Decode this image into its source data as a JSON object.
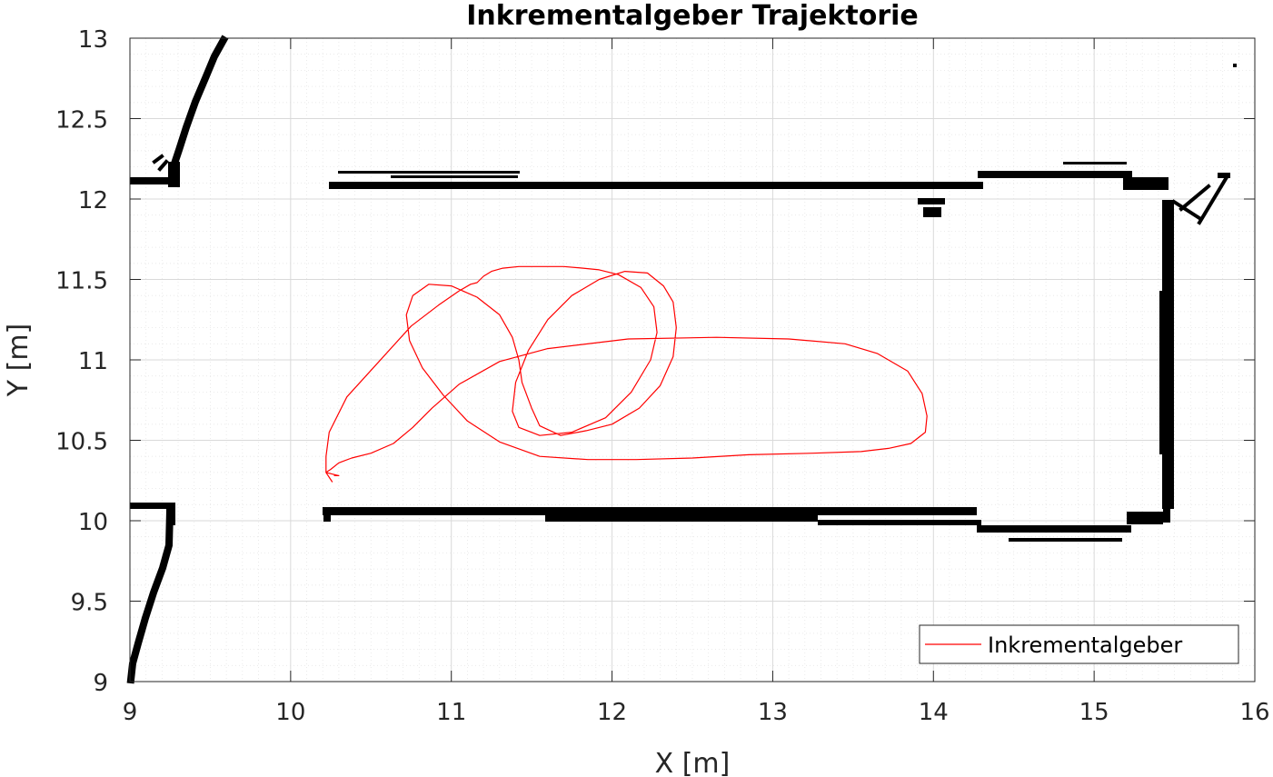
{
  "chart_data": {
    "type": "line",
    "title": "Inkrementalgeber Trajektorie",
    "xlabel": "X [m]",
    "ylabel": "Y [m]",
    "xlim": [
      9,
      16
    ],
    "ylim": [
      9,
      13
    ],
    "x_ticks": [
      "9",
      "10",
      "11",
      "12",
      "13",
      "14",
      "15",
      "16"
    ],
    "y_ticks": [
      "9",
      "9.5",
      "10",
      "10.5",
      "11",
      "11.5",
      "12",
      "12.5",
      "13"
    ],
    "grid": true,
    "minor_grid": true,
    "legend_position": "bottom-right",
    "series": [
      {
        "name": "Inkrementalgeber",
        "color": "#ff0000",
        "x": [
          10.26,
          10.22,
          10.22,
          10.24,
          10.35,
          10.55,
          10.75,
          10.92,
          11.05,
          11.12,
          11.16,
          11.2,
          11.25,
          11.32,
          11.42,
          11.55,
          11.7,
          11.82,
          11.92,
          12.04,
          12.18,
          12.26,
          12.28,
          12.24,
          12.12,
          11.96,
          11.75,
          11.55,
          11.42,
          11.38,
          11.4,
          11.48,
          11.6,
          11.75,
          11.92,
          12.08,
          12.22,
          12.32,
          12.38,
          12.4,
          12.38,
          12.3,
          12.17,
          12.0,
          11.84,
          11.68,
          11.55,
          11.5,
          11.44,
          11.42,
          11.38,
          11.3,
          11.16,
          11.0,
          10.86,
          10.76,
          10.72,
          10.74,
          10.82,
          10.95,
          11.1,
          11.3,
          11.55,
          11.85,
          12.15,
          12.5,
          12.85,
          13.25,
          13.55,
          13.72,
          13.86,
          13.95,
          13.96,
          13.93,
          13.84,
          13.65,
          13.45,
          13.1,
          12.65,
          12.1,
          11.6,
          11.3,
          11.05,
          10.88,
          10.76,
          10.64,
          10.5,
          10.38,
          10.3,
          10.25,
          10.22,
          10.26,
          10.3,
          10.27
        ],
        "y": [
          10.24,
          10.3,
          10.4,
          10.55,
          10.77,
          10.99,
          11.21,
          11.34,
          11.43,
          11.47,
          11.48,
          11.52,
          11.55,
          11.57,
          11.58,
          11.58,
          11.58,
          11.57,
          11.56,
          11.53,
          11.45,
          11.33,
          11.17,
          11.0,
          10.8,
          10.64,
          10.55,
          10.53,
          10.58,
          10.68,
          10.86,
          11.06,
          11.25,
          11.4,
          11.5,
          11.55,
          11.54,
          11.46,
          11.36,
          11.2,
          11.02,
          10.84,
          10.7,
          10.6,
          10.56,
          10.53,
          10.59,
          10.7,
          10.86,
          11.0,
          11.14,
          11.28,
          11.39,
          11.46,
          11.47,
          11.4,
          11.28,
          11.12,
          10.95,
          10.78,
          10.62,
          10.49,
          10.4,
          10.38,
          10.38,
          10.39,
          10.41,
          10.42,
          10.43,
          10.45,
          10.48,
          10.55,
          10.65,
          10.79,
          10.93,
          11.04,
          11.1,
          11.13,
          11.14,
          11.13,
          11.07,
          10.99,
          10.85,
          10.7,
          10.58,
          10.48,
          10.42,
          10.39,
          10.36,
          10.32,
          10.3,
          10.29,
          10.28,
          10.28
        ]
      }
    ]
  }
}
